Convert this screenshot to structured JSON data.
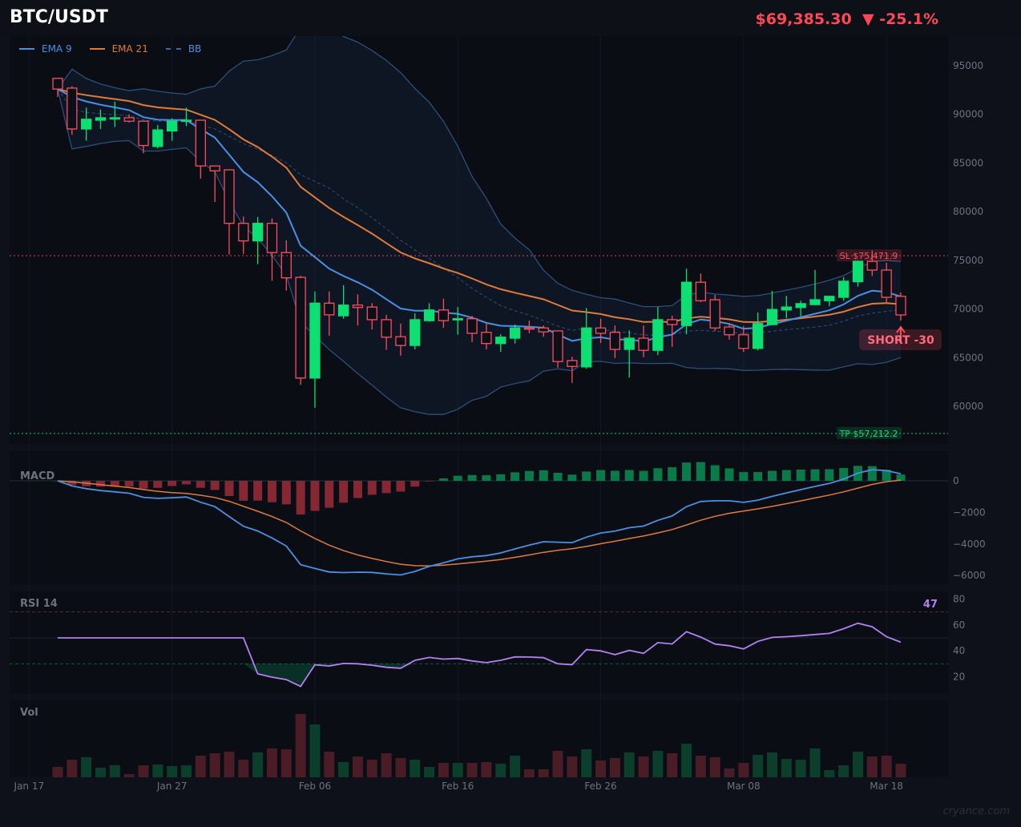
{
  "header": {
    "symbol": "BTC/USDT",
    "last_price": "$69,385.30",
    "change_arrow": "▼",
    "change_pct": "-25.1%"
  },
  "legend": [
    {
      "label": "EMA 9",
      "color": "#4a90e2",
      "style": "solid"
    },
    {
      "label": "EMA 21",
      "color": "#e07b39",
      "style": "solid"
    },
    {
      "label": "BB",
      "color": "#3b6aa8",
      "style": "dashed"
    }
  ],
  "watermark": "cryance.com",
  "colors": {
    "up": "#0ddf72",
    "down": "#ff4d5e",
    "ema9": "#4a90e2",
    "ema21": "#e07b39",
    "bb": "#2c4f7c",
    "rsi": "#b47ff0",
    "sl": "#ff4d5e",
    "tp": "#0ddf72"
  },
  "chart_data": [
    {
      "type": "candlestick",
      "title": "BTC/USDT",
      "panel": "price",
      "first_date": "Jan 19",
      "interval": "1D",
      "ylim": [
        56000,
        98500
      ],
      "y_ticks": [
        60000,
        65000,
        70000,
        75000,
        80000,
        85000,
        90000,
        95000
      ],
      "x_ticks": [
        {
          "label": "Jan 17",
          "day": -2
        },
        {
          "label": "Jan 27",
          "day": 8
        },
        {
          "label": "Feb 06",
          "day": 18
        },
        {
          "label": "Feb 16",
          "day": 28
        },
        {
          "label": "Feb 26",
          "day": 38
        },
        {
          "label": "Mar 08",
          "day": 48
        },
        {
          "label": "Mar 18",
          "day": 58
        }
      ],
      "ohlc": [
        [
          93700,
          93700,
          91800,
          92600
        ],
        [
          92700,
          92900,
          87900,
          88500
        ],
        [
          88500,
          90700,
          87300,
          89500
        ],
        [
          89400,
          90500,
          88500,
          89650
        ],
        [
          89600,
          91300,
          88700,
          89650
        ],
        [
          89650,
          90000,
          89150,
          89300
        ],
        [
          89300,
          89300,
          86000,
          86800
        ],
        [
          86700,
          88900,
          86500,
          88400
        ],
        [
          88300,
          89600,
          87300,
          89300
        ],
        [
          89300,
          90700,
          88800,
          89400
        ],
        [
          89400,
          89400,
          83400,
          84700
        ],
        [
          84700,
          84700,
          81000,
          84200
        ],
        [
          84300,
          84300,
          75600,
          78800
        ],
        [
          78800,
          79500,
          75650,
          77000
        ],
        [
          77000,
          79450,
          74600,
          78800
        ],
        [
          78800,
          79300,
          72900,
          75800
        ],
        [
          75800,
          77050,
          71900,
          73200
        ],
        [
          73250,
          73400,
          62200,
          62900
        ],
        [
          62900,
          71800,
          59850,
          70600
        ],
        [
          70600,
          71800,
          67250,
          69400
        ],
        [
          69300,
          72450,
          69000,
          70400
        ],
        [
          70400,
          71500,
          68300,
          70150
        ],
        [
          70200,
          70600,
          67900,
          68900
        ],
        [
          68900,
          69400,
          65800,
          67100
        ],
        [
          67150,
          68500,
          65200,
          66250
        ],
        [
          66250,
          69550,
          65850,
          68900
        ],
        [
          68800,
          70600,
          68700,
          69900
        ],
        [
          69900,
          71050,
          68050,
          68800
        ],
        [
          68900,
          70200,
          67350,
          69000
        ],
        [
          69000,
          69300,
          66600,
          67500
        ],
        [
          67600,
          68600,
          65850,
          66450
        ],
        [
          66450,
          67400,
          65600,
          67100
        ],
        [
          67000,
          68400,
          66450,
          68050
        ],
        [
          68050,
          68800,
          67500,
          67950
        ],
        [
          68050,
          68300,
          67150,
          67650
        ],
        [
          67750,
          67750,
          63950,
          64600
        ],
        [
          64700,
          65100,
          62400,
          64100
        ],
        [
          64050,
          70100,
          63850,
          68050
        ],
        [
          68050,
          69000,
          66500,
          67500
        ],
        [
          67600,
          68300,
          64950,
          65850
        ],
        [
          65850,
          67800,
          62950,
          67000
        ],
        [
          67000,
          68300,
          65050,
          65750
        ],
        [
          65750,
          70200,
          65250,
          68900
        ],
        [
          68900,
          69300,
          66100,
          68400
        ],
        [
          68300,
          74150,
          67400,
          72750
        ],
        [
          72750,
          73650,
          70700,
          70850
        ],
        [
          70950,
          71450,
          67750,
          68050
        ],
        [
          68150,
          68550,
          66850,
          67350
        ],
        [
          67350,
          68250,
          65600,
          65950
        ],
        [
          65950,
          69650,
          65750,
          68500
        ],
        [
          68400,
          71850,
          68400,
          69950
        ],
        [
          69900,
          71350,
          69050,
          70200
        ],
        [
          70150,
          70850,
          69250,
          70550
        ],
        [
          70450,
          74000,
          70400,
          70950
        ],
        [
          70850,
          71350,
          70300,
          71300
        ],
        [
          71200,
          73250,
          70850,
          72850
        ],
        [
          72800,
          75000,
          72300,
          74900
        ],
        [
          74900,
          76000,
          73400,
          74000
        ],
        [
          74000,
          74750,
          70550,
          71200
        ],
        [
          71300,
          71700,
          68800,
          69385.3
        ]
      ],
      "volume": [
        13,
        22,
        25,
        12,
        15,
        4,
        15,
        16,
        14,
        15,
        27,
        30,
        32,
        22,
        31,
        36,
        35,
        79,
        66,
        32,
        19,
        26,
        22,
        30,
        24,
        22,
        13,
        18,
        18,
        18,
        19,
        17,
        27,
        10,
        10,
        33,
        26,
        35,
        21,
        24,
        31,
        26,
        33,
        30,
        42,
        27,
        25,
        11,
        18,
        28,
        31,
        23,
        22,
        36,
        9,
        15,
        32,
        26,
        27,
        17
      ],
      "overlays": {
        "ema_fast": 9,
        "ema_slow": 21,
        "bb_period": 20,
        "bb_mult": 2
      },
      "levels": [
        {
          "name": "SL",
          "label": "SL $75,471.9",
          "value": 75471.9
        },
        {
          "name": "TP",
          "label": "TP $57,212.2",
          "value": 57212.2
        }
      ],
      "signal": {
        "label": "SHORT  -30",
        "day": 59
      }
    },
    {
      "type": "bar+line",
      "panel": "macd",
      "title": "MACD",
      "params": [
        12,
        26,
        9
      ],
      "ylim": [
        -6600,
        1600
      ],
      "y_ticks": [
        0,
        -2000,
        -4000,
        -6000
      ],
      "y_tick_labels": [
        "0",
        "−2000",
        "−4000",
        "−6000"
      ]
    },
    {
      "type": "line",
      "panel": "rsi",
      "title": "RSI 14",
      "period": 14,
      "current_label": "47",
      "ylim": [
        12,
        90
      ],
      "y_ticks": [
        80,
        60,
        40,
        20
      ],
      "overbought": 70,
      "oversold": 30,
      "mid": 50
    },
    {
      "type": "bar",
      "panel": "volume",
      "title": "Vol"
    }
  ]
}
